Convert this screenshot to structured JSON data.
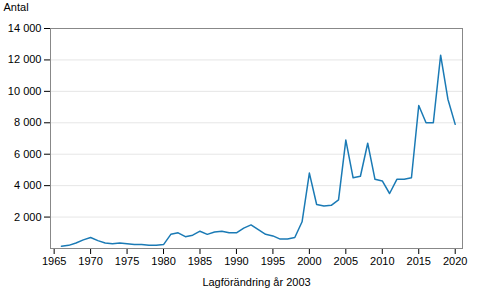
{
  "chart_data": {
    "type": "line",
    "xlabel": "Lagförändring år 2003",
    "ylabel": "Antal",
    "x": [
      1966,
      1967,
      1968,
      1969,
      1970,
      1971,
      1972,
      1973,
      1974,
      1975,
      1976,
      1977,
      1978,
      1979,
      1980,
      1981,
      1982,
      1983,
      1984,
      1985,
      1986,
      1987,
      1988,
      1989,
      1990,
      1991,
      1992,
      1993,
      1994,
      1995,
      1996,
      1997,
      1998,
      1999,
      2000,
      2001,
      2002,
      2003,
      2004,
      2005,
      2006,
      2007,
      2008,
      2009,
      2010,
      2011,
      2012,
      2013,
      2014,
      2015,
      2016,
      2017,
      2018,
      2019,
      2020
    ],
    "values": [
      150,
      200,
      350,
      550,
      700,
      500,
      350,
      300,
      350,
      300,
      250,
      250,
      200,
      200,
      250,
      900,
      1000,
      750,
      850,
      1100,
      900,
      1050,
      1100,
      1000,
      1000,
      1300,
      1500,
      1200,
      900,
      800,
      600,
      600,
      700,
      1700,
      4800,
      2800,
      2700,
      2750,
      3100,
      6900,
      4500,
      4600,
      6700,
      4400,
      4300,
      3500,
      4400,
      4400,
      4500,
      9100,
      8000,
      8000,
      12300,
      9500,
      7900
    ],
    "color": "#1a7ab5",
    "xlim": [
      1964.5,
      2021
    ],
    "xticks": [
      1965,
      1970,
      1975,
      1980,
      1985,
      1990,
      1995,
      2000,
      2005,
      2010,
      2015,
      2020
    ],
    "ylim": [
      0,
      14000
    ],
    "yticks": [
      {
        "value": 2000,
        "label": "2 000"
      },
      {
        "value": 4000,
        "label": "4 000"
      },
      {
        "value": 6000,
        "label": "6 000"
      },
      {
        "value": 8000,
        "label": "8 000"
      },
      {
        "value": 10000,
        "label": "10 000"
      },
      {
        "value": 12000,
        "label": "12 000"
      },
      {
        "value": 14000,
        "label": "14 000"
      }
    ],
    "grid": true
  }
}
